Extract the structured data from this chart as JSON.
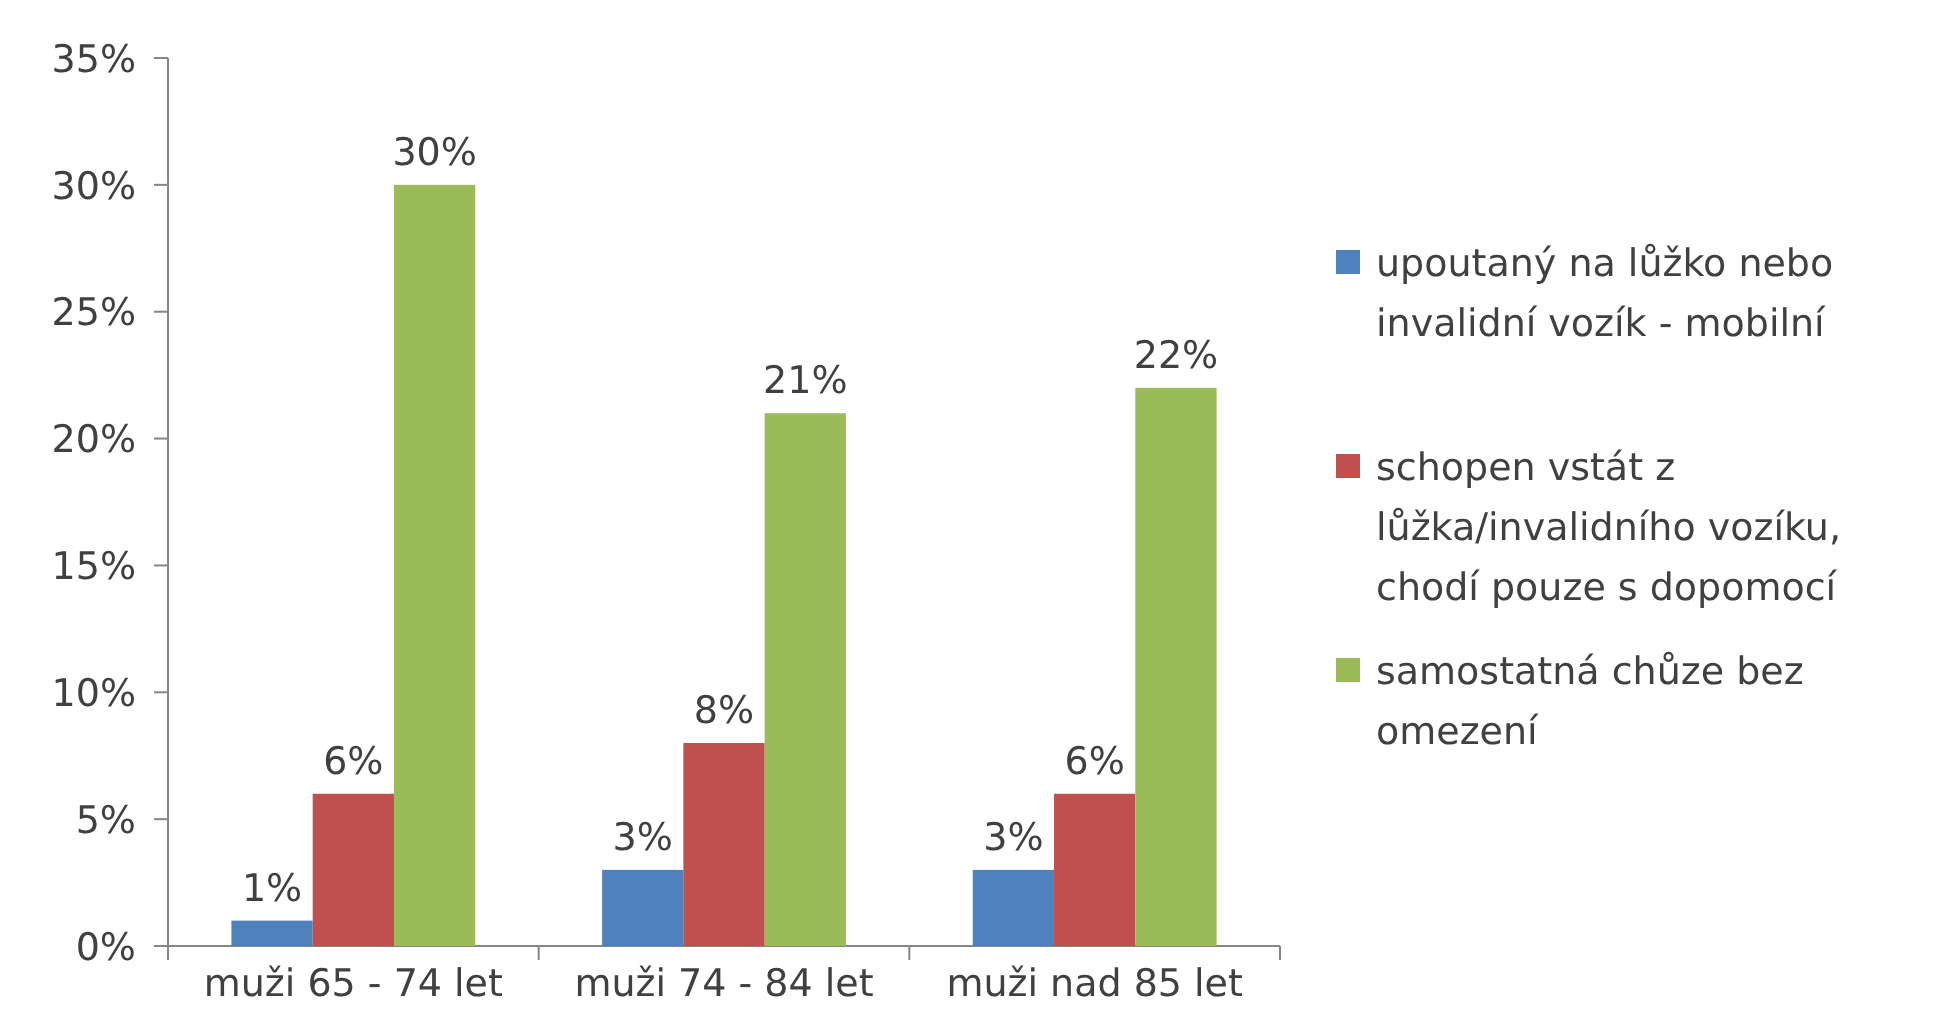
{
  "chart_data": {
    "type": "bar",
    "categories": [
      "muži 65 - 74 let",
      "muži 74 - 84 let",
      "muži nad 85 let"
    ],
    "series": [
      {
        "name": "upoutaný na lůžko nebo invalidní vozík - mobilní",
        "color": "#4f81bd",
        "values": [
          1,
          3,
          3
        ],
        "value_labels": [
          "1%",
          "3%",
          "3%"
        ]
      },
      {
        "name": "schopen vstát z lůžka/invalidního vozíku, chodí pouze s dopomocí",
        "color": "#c0504d",
        "values": [
          6,
          8,
          6
        ],
        "value_labels": [
          "6%",
          "8%",
          "6%"
        ]
      },
      {
        "name": "samostatná chůze bez omezení",
        "color": "#9bbb59",
        "values": [
          30,
          21,
          22
        ],
        "value_labels": [
          "30%",
          "21%",
          "22%"
        ]
      }
    ],
    "ylim": [
      0,
      35
    ],
    "yticks": [
      {
        "value": 0,
        "label": "0%"
      },
      {
        "value": 5,
        "label": "5%"
      },
      {
        "value": 10,
        "label": "10%"
      },
      {
        "value": 15,
        "label": "15%"
      },
      {
        "value": 20,
        "label": "20%"
      },
      {
        "value": 25,
        "label": "25%"
      },
      {
        "value": 30,
        "label": "30%"
      },
      {
        "value": 35,
        "label": "35%"
      }
    ],
    "legend": "right"
  }
}
